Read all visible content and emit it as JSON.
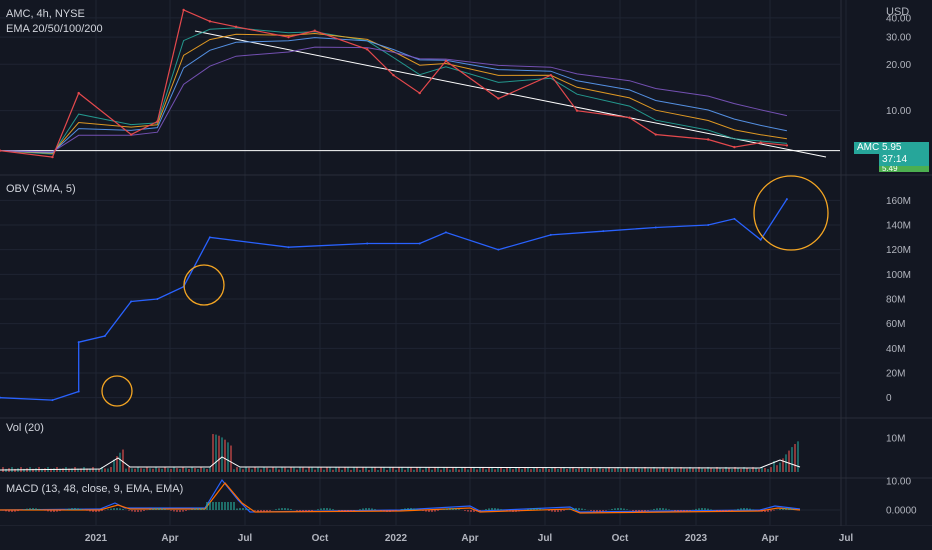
{
  "symbol_header": "AMC, 4h, NYSE",
  "ema_label": "EMA 20/50/100/200",
  "currency": "USD",
  "obv_label": "OBV (SMA, 5)",
  "vol_label": "Vol (20)",
  "macd_label": "MACD (13, 48, close, 9, EMA, EMA)",
  "price_badge": {
    "ticker": "AMC",
    "price": "5.95",
    "countdown": "37:14",
    "partial": "5.49"
  },
  "colors": {
    "bg": "#131722",
    "price_line": "#e5494d",
    "obv_line": "#2962ff",
    "ema": "#26a69a",
    "circle": "#f5a623",
    "trend": "#ffffff",
    "badge": "#26a69a"
  },
  "chart_data": [
    {
      "type": "line",
      "title": "AMC, 4h, NYSE",
      "scale": "log",
      "y_ticks": [
        "40.00",
        "30.00",
        "20.00",
        "10.00"
      ],
      "ylim": [
        4,
        45
      ],
      "x": [
        "2020-11",
        "2021-01",
        "2021-02",
        "2021-04",
        "2021-05",
        "2021-06",
        "2021-07",
        "2021-08",
        "2021-10",
        "2021-11",
        "2022-01",
        "2022-02",
        "2022-03",
        "2022-04",
        "2022-06",
        "2022-08",
        "2022-09",
        "2022-11",
        "2022-12",
        "2023-02",
        "2023-03",
        "2023-04",
        "2023-05"
      ],
      "series": [
        {
          "name": "AMC",
          "values": [
            5.5,
            5.0,
            13,
            7,
            8.5,
            45,
            38,
            35,
            30,
            33,
            25,
            17,
            13,
            21,
            12,
            17,
            10,
            9,
            7,
            6.5,
            5.8,
            6.2,
            5.95
          ]
        }
      ],
      "trendline": {
        "from": [
          "2021-06",
          40
        ],
        "to": [
          "2023-05",
          5.5
        ]
      },
      "support": 5.5
    },
    {
      "type": "line",
      "title": "OBV (SMA, 5)",
      "y_ticks": [
        "160M",
        "140M",
        "120M",
        "100M",
        "80M",
        "60M",
        "40M",
        "20M",
        "0"
      ],
      "ylim": [
        -10,
        170
      ],
      "x": [
        "2020-11",
        "2021-01",
        "2021-02",
        "2021-02",
        "2021-03",
        "2021-04",
        "2021-05",
        "2021-06",
        "2021-07",
        "2021-10",
        "2022-01",
        "2022-03",
        "2022-04",
        "2022-06",
        "2022-08",
        "2022-10",
        "2022-12",
        "2023-02",
        "2023-03",
        "2023-04",
        "2023-05"
      ],
      "series": [
        {
          "name": "OBV",
          "values": [
            0,
            -2,
            5,
            45,
            50,
            78,
            80,
            90,
            130,
            122,
            125,
            125,
            134,
            120,
            132,
            135,
            138,
            140,
            145,
            128,
            161
          ]
        }
      ],
      "highlights": [
        "2021-01",
        "2021-05",
        "2023-04"
      ]
    },
    {
      "type": "bar",
      "title": "Vol (20)",
      "y_ticks": [
        "10M"
      ],
      "x": [
        "2021-01",
        "2021-06",
        "2023-04"
      ],
      "values": [
        12,
        10,
        10
      ]
    },
    {
      "type": "line",
      "title": "MACD (13, 48, close, 9, EMA, EMA)",
      "y_ticks": [
        "10.00",
        "0.0000"
      ],
      "x": [
        "2021-01",
        "2021-06",
        "2021-07",
        "2022-04",
        "2022-08",
        "2023-04"
      ],
      "series": [
        {
          "name": "MACD",
          "values": [
            1,
            11,
            2,
            1.5,
            1.2,
            0.5
          ]
        }
      ]
    }
  ],
  "x_axis": [
    "2021",
    "Apr",
    "Jul",
    "Oct",
    "2022",
    "Apr",
    "Jul",
    "Oct",
    "2023",
    "Apr",
    "Jul"
  ]
}
